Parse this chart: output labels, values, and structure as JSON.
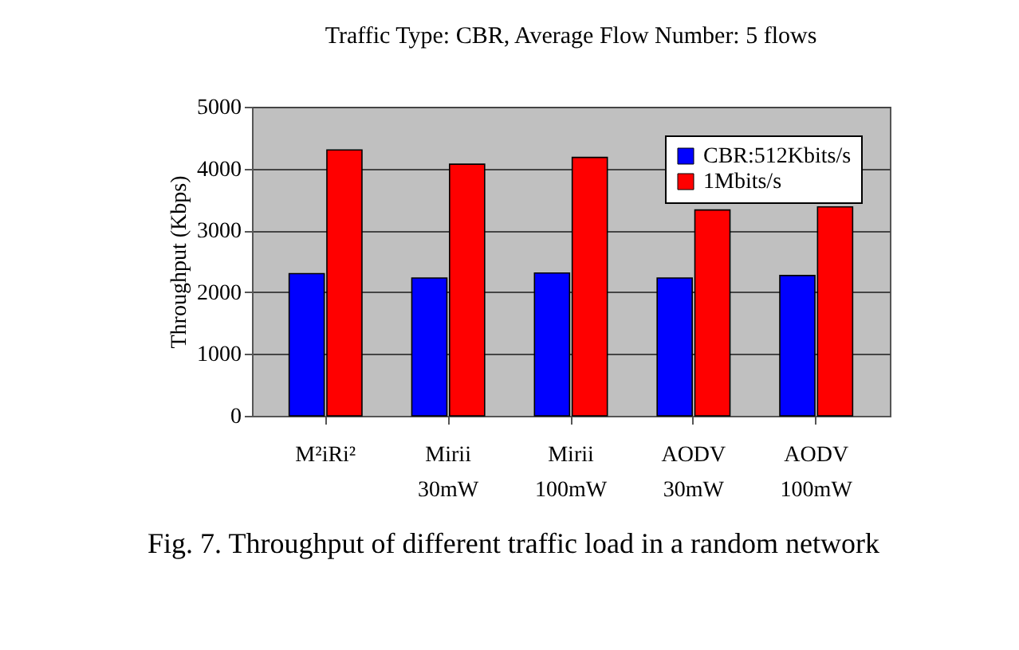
{
  "chart_data": {
    "type": "bar",
    "title": "Traffic Type: CBR, Average Flow Number: 5 flows",
    "ylabel": "Throughput (Kbps)",
    "categories": [
      "M²iRi²",
      "Mirii 30mW",
      "Mirii 100mW",
      "AODV 30mW",
      "AODV 100mW"
    ],
    "series": [
      {
        "name": "CBR:512Kbits/s",
        "color": "#0000ff",
        "values": [
          2300,
          2230,
          2310,
          2230,
          2270
        ]
      },
      {
        "name": "1Mbits/s",
        "color": "#ff0000",
        "values": [
          4300,
          4070,
          4180,
          3330,
          3380
        ]
      }
    ],
    "ylim": [
      0,
      5000
    ],
    "yticks": [
      0,
      1000,
      2000,
      3000,
      4000,
      5000
    ],
    "grid": "y",
    "legend": "top right",
    "annotations": [
      "Fig. 7.  Throughput of different traffic load in a random network"
    ]
  }
}
